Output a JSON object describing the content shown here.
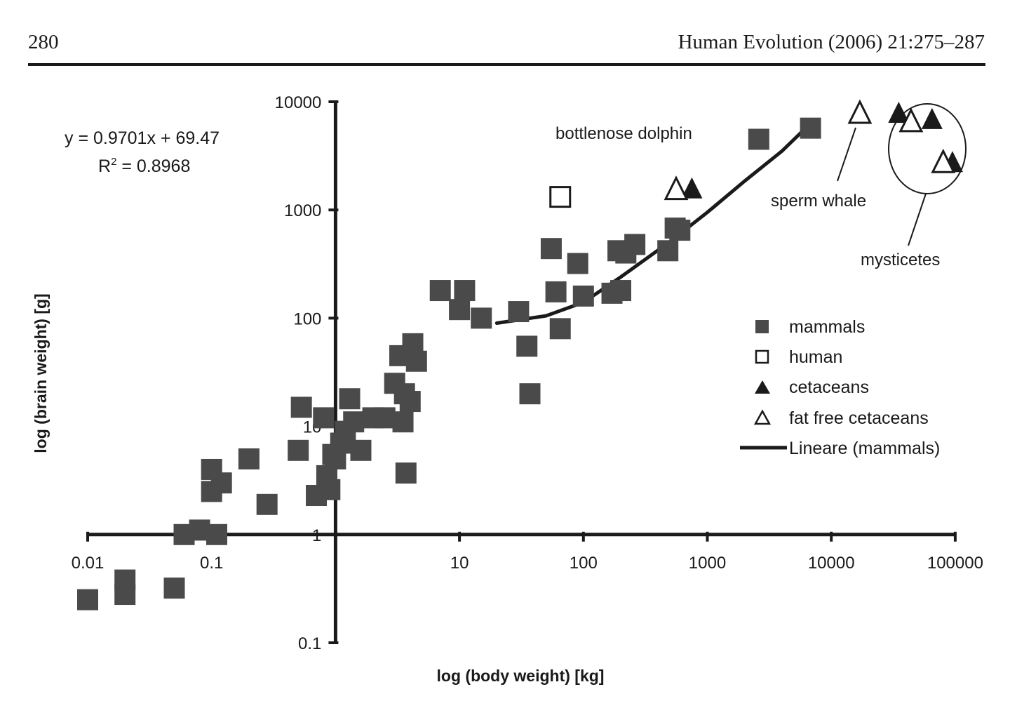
{
  "header": {
    "page_number": "280",
    "running_head": "Human Evolution (2006) 21:275–287"
  },
  "chart_data": {
    "type": "scatter",
    "x_scale": "log",
    "y_scale": "log",
    "xlim": [
      0.01,
      100000
    ],
    "ylim": [
      0.1,
      10000
    ],
    "xlabel": "log (body weight) [kg]",
    "ylabel": "log (brain weight) [g]",
    "x_ticks": [
      "0.01",
      "0.1",
      "1",
      "10",
      "100",
      "1000",
      "10000",
      "100000"
    ],
    "y_ticks": [
      "0.1",
      "1",
      "10",
      "100",
      "1000",
      "10000"
    ],
    "equation": "y = 0.9701x + 69.47",
    "r2_text": "R",
    "r2_sup": "2",
    "r2_value": " = 0.8968",
    "annotations": {
      "dolphin": "bottlenose dolphin",
      "sperm_whale": "sperm whale",
      "mysticetes": "mysticetes"
    },
    "legend": {
      "mammals": "mammals",
      "human": "human",
      "cetaceans": "cetaceans",
      "fat_free": "fat free cetaceans",
      "line": "Lineare (mammals)"
    },
    "series": [
      {
        "name": "mammals",
        "marker": "filled-square",
        "points": [
          [
            0.01,
            0.25
          ],
          [
            0.02,
            0.28
          ],
          [
            0.02,
            0.38
          ],
          [
            0.05,
            0.32
          ],
          [
            0.06,
            1.0
          ],
          [
            0.08,
            1.1
          ],
          [
            0.1,
            4.0
          ],
          [
            0.1,
            2.5
          ],
          [
            0.12,
            3.0
          ],
          [
            0.11,
            1.0
          ],
          [
            0.2,
            5.0
          ],
          [
            0.28,
            1.9
          ],
          [
            0.5,
            6.0
          ],
          [
            0.53,
            15.0
          ],
          [
            0.7,
            2.3
          ],
          [
            0.8,
            12.0
          ],
          [
            0.85,
            3.5
          ],
          [
            0.9,
            2.6
          ],
          [
            0.95,
            5.5
          ],
          [
            1.0,
            5.0
          ],
          [
            1.1,
            7.0
          ],
          [
            1.2,
            9.0
          ],
          [
            1.3,
            18.0
          ],
          [
            1.4,
            11.0
          ],
          [
            1.6,
            6.0
          ],
          [
            2.0,
            12.0
          ],
          [
            2.5,
            12.0
          ],
          [
            3.0,
            25.0
          ],
          [
            3.3,
            45.0
          ],
          [
            3.5,
            11.0
          ],
          [
            3.6,
            20.0
          ],
          [
            3.7,
            3.7
          ],
          [
            4.0,
            17.0
          ],
          [
            4.2,
            58.0
          ],
          [
            4.5,
            40.0
          ],
          [
            7.0,
            180.0
          ],
          [
            10.0,
            120.0
          ],
          [
            11.0,
            180.0
          ],
          [
            15.0,
            100.0
          ],
          [
            30.0,
            115.0
          ],
          [
            35.0,
            55.0
          ],
          [
            37.0,
            20.0
          ],
          [
            55.0,
            440.0
          ],
          [
            60.0,
            175.0
          ],
          [
            65.0,
            80.0
          ],
          [
            90.0,
            320.0
          ],
          [
            100.0,
            160.0
          ],
          [
            170.0,
            170.0
          ],
          [
            190.0,
            420.0
          ],
          [
            200.0,
            180.0
          ],
          [
            220.0,
            400.0
          ],
          [
            260.0,
            480.0
          ],
          [
            480.0,
            420.0
          ],
          [
            550.0,
            680.0
          ],
          [
            600.0,
            650.0
          ],
          [
            2600.0,
            4500.0
          ],
          [
            6800.0,
            5700.0
          ]
        ]
      },
      {
        "name": "human",
        "marker": "open-square",
        "points": [
          [
            65.0,
            1320.0
          ]
        ]
      },
      {
        "name": "cetaceans",
        "marker": "filled-triangle",
        "points": [
          [
            750.0,
            1600.0
          ],
          [
            35000.0,
            8000.0
          ],
          [
            65000.0,
            7000.0
          ],
          [
            95000.0,
            2800.0
          ]
        ]
      },
      {
        "name": "fat free cetaceans",
        "marker": "open-triangle",
        "points": [
          [
            560.0,
            1580.0
          ],
          [
            17000.0,
            8000.0
          ],
          [
            44000.0,
            6700.0
          ],
          [
            80000.0,
            2800.0
          ]
        ]
      }
    ],
    "trendline": {
      "name": "Lineare (mammals)",
      "points": [
        [
          20,
          90
        ],
        [
          50,
          105
        ],
        [
          100,
          140
        ],
        [
          200,
          240
        ],
        [
          500,
          510
        ],
        [
          1000,
          950
        ],
        [
          2000,
          1850
        ],
        [
          4000,
          3500
        ],
        [
          6500,
          6000
        ]
      ]
    }
  }
}
